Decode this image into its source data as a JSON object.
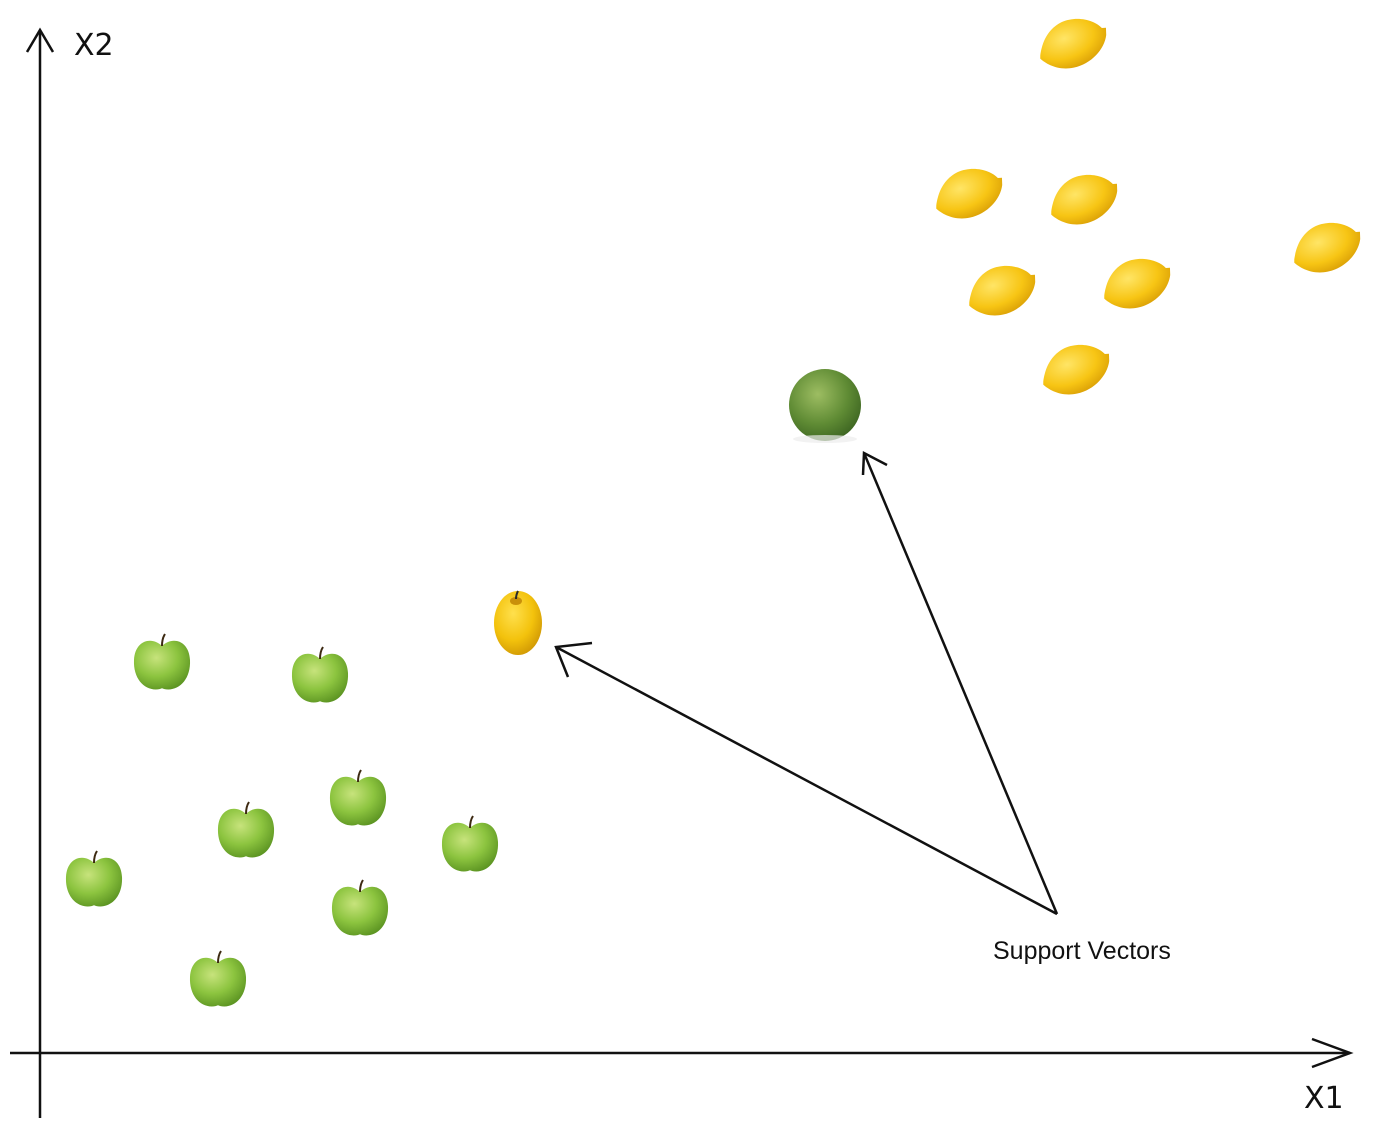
{
  "axes": {
    "x_label": "X1",
    "y_label": "X2"
  },
  "annotation": {
    "text": "Support Vectors"
  },
  "classes": [
    {
      "name": "apple",
      "icon": "green-apple-icon",
      "count": 9
    },
    {
      "name": "lemon",
      "icon": "lemon-icon",
      "count": 8
    }
  ],
  "support_vectors": [
    {
      "icon": "yellow-apple-icon"
    },
    {
      "icon": "green-lime-icon"
    }
  ],
  "colors": {
    "axis": "#111111",
    "apple_green": "#8cc43f",
    "lemon_yellow": "#f7c514",
    "yellow_apple": "#f3c20c",
    "lime_green": "#5f8b34"
  }
}
